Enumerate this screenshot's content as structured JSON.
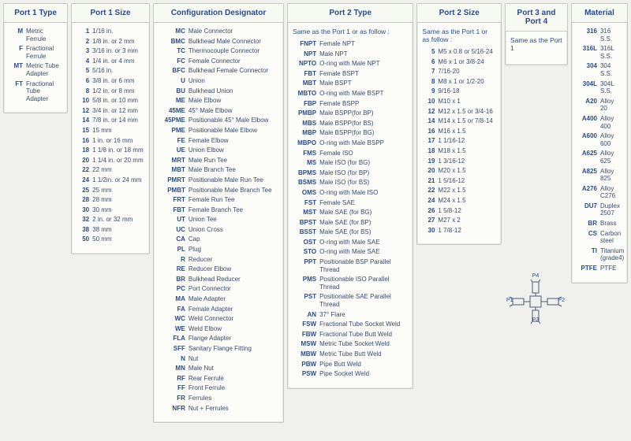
{
  "columns": {
    "port1type": {
      "title": "Port 1 Type",
      "rows": [
        {
          "code": "M",
          "label": "Metric Ferrule"
        },
        {
          "code": "F",
          "label": "Fractional Ferrule"
        },
        {
          "code": "MT",
          "label": "Metric Tube Adapter"
        },
        {
          "code": "FT",
          "label": "Fractional Tube Adapter"
        }
      ]
    },
    "port1size": {
      "title": "Port 1 Size",
      "rows": [
        {
          "code": "1",
          "label": "1/16 in."
        },
        {
          "code": "2",
          "label": "1/8 in. or 2 mm"
        },
        {
          "code": "3",
          "label": "3/16 in. or 3 mm"
        },
        {
          "code": "4",
          "label": "1/4 in. or 4 mm"
        },
        {
          "code": "5",
          "label": "5/16 in."
        },
        {
          "code": "6",
          "label": "3/8 in. or 6 mm"
        },
        {
          "code": "8",
          "label": "1/2 in. or 8 mm"
        },
        {
          "code": "10",
          "label": "5/8 in. or 10 mm"
        },
        {
          "code": "12",
          "label": "3/4 in. or 12 mm"
        },
        {
          "code": "14",
          "label": "7/8 in. or 14 mm"
        },
        {
          "code": "15",
          "label": "15 mm"
        },
        {
          "code": "16",
          "label": "1 in. or 16 mm"
        },
        {
          "code": "18",
          "label": "1 1/8 in. or 18 mm"
        },
        {
          "code": "20",
          "label": "1 1/4 in. or 20 mm"
        },
        {
          "code": "22",
          "label": "22 mm"
        },
        {
          "code": "24",
          "label": "1 1/2in. or 24 mm"
        },
        {
          "code": "25",
          "label": "25 mm"
        },
        {
          "code": "28",
          "label": "28 mm"
        },
        {
          "code": "30",
          "label": "30 mm"
        },
        {
          "code": "32",
          "label": "2 in. or 32 mm"
        },
        {
          "code": "38",
          "label": "38 mm"
        },
        {
          "code": "50",
          "label": "50 mm"
        }
      ]
    },
    "config": {
      "title": "Configuration Designator",
      "rows": [
        {
          "code": "MC",
          "label": "Male Connector"
        },
        {
          "code": "BMC",
          "label": "Bulkhead Male Connector"
        },
        {
          "code": "TC",
          "label": "Thermocouple Connector"
        },
        {
          "code": "FC",
          "label": "Female Connector"
        },
        {
          "code": "BFC",
          "label": "Bulkhead Female Connector"
        },
        {
          "code": "U",
          "label": "Union"
        },
        {
          "code": "BU",
          "label": "Bulkhead Union"
        },
        {
          "code": "ME",
          "label": "Male Elbow"
        },
        {
          "code": "45ME",
          "label": "45° Male Elbow"
        },
        {
          "code": "45PME",
          "label": "Positionable 45° Male Elbow"
        },
        {
          "code": "PME",
          "label": "Positionable Male Elbow"
        },
        {
          "code": "FE",
          "label": "Female Elbow"
        },
        {
          "code": "UE",
          "label": "Union Elbow"
        },
        {
          "code": "MRT",
          "label": "Male Run Tee"
        },
        {
          "code": "MBT",
          "label": "Male Branch Tee"
        },
        {
          "code": "PMRT",
          "label": "Positionable Male Run Tee"
        },
        {
          "code": "PMBT",
          "label": "Positionable Male Branch Tee"
        },
        {
          "code": "FRT",
          "label": "Female Run Tee"
        },
        {
          "code": "FBT",
          "label": "Female Branch Tee"
        },
        {
          "code": "UT",
          "label": "Union Tee"
        },
        {
          "code": "UC",
          "label": "Union Cross"
        },
        {
          "code": "CA",
          "label": "Cap"
        },
        {
          "code": "PL",
          "label": "Plug"
        },
        {
          "code": "R",
          "label": "Reducer"
        },
        {
          "code": "RE",
          "label": "Reducer Elbow"
        },
        {
          "code": "BR",
          "label": "Bulkhead Reducer"
        },
        {
          "code": "PC",
          "label": "Port Connector"
        },
        {
          "code": "MA",
          "label": "Male Adapter"
        },
        {
          "code": "FA",
          "label": "Female Adapter"
        },
        {
          "code": "WC",
          "label": "Weld Connector"
        },
        {
          "code": "WE",
          "label": "Weld Elbow"
        },
        {
          "code": "FLA",
          "label": "Flange Adapter"
        },
        {
          "code": "SFF",
          "label": "Sanitary Flange Fitting"
        },
        {
          "code": "N",
          "label": "Nut"
        },
        {
          "code": "MN",
          "label": "Male Nut"
        },
        {
          "code": "RF",
          "label": "Rear Ferrule"
        },
        {
          "code": "FF",
          "label": "Front Ferrule"
        },
        {
          "code": "FR",
          "label": "Ferrules"
        },
        {
          "code": "NFR",
          "label": "Nut + Ferrules"
        }
      ]
    },
    "port2type": {
      "title": "Port 2 Type",
      "note": "Same as the Port 1 or as follow :",
      "rows": [
        {
          "code": "FNPT",
          "label": "Female NPT"
        },
        {
          "code": "NPT",
          "label": "Male NPT"
        },
        {
          "code": "NPTO",
          "label": "O-ring with Male NPT"
        },
        {
          "code": "FBT",
          "label": "Female BSPT"
        },
        {
          "code": "MBT",
          "label": "Male BSPT"
        },
        {
          "code": "MBTO",
          "label": "O-ring with Male BSPT"
        },
        {
          "code": "FBP",
          "label": "Female BSPP"
        },
        {
          "code": "PMBP",
          "label": "Male BSPP(for BP)"
        },
        {
          "code": "MBS",
          "label": "Male BSPP(for BS)"
        },
        {
          "code": "MBP",
          "label": "Male BSPP(for BG)"
        },
        {
          "code": "MBPO",
          "label": "O-ring with Male BSPP"
        },
        {
          "code": "FMS",
          "label": "Female ISO"
        },
        {
          "code": "MS",
          "label": "Male ISO (for BG)"
        },
        {
          "code": "BPMS",
          "label": "Male ISO (for BP)"
        },
        {
          "code": "BSMS",
          "label": "Male ISO (for BS)"
        },
        {
          "code": "OMS",
          "label": "O-ring with Male ISO"
        },
        {
          "code": "FST",
          "label": "Female SAE"
        },
        {
          "code": "MST",
          "label": "Male SAE (for BG)"
        },
        {
          "code": "BPST",
          "label": "Male SAE (for BP)"
        },
        {
          "code": "BSST",
          "label": "Male SAE (for BS)"
        },
        {
          "code": "OST",
          "label": "O-ring with Male SAE"
        },
        {
          "code": "STO",
          "label": "O-ring with Male SAE"
        },
        {
          "code": "PPT",
          "label": "Positionable BSP Parallel Thread"
        },
        {
          "code": "PMS",
          "label": "Positionable ISO Parallel Thread"
        },
        {
          "code": "PST",
          "label": "Positionable SAE Parallel Thread"
        },
        {
          "code": "AN",
          "label": "37° Flare"
        },
        {
          "code": "FSW",
          "label": "Fractional Tube Socket Weld"
        },
        {
          "code": "FBW",
          "label": "Fractional Tube Butt Weld"
        },
        {
          "code": "MSW",
          "label": "Metric Tube Socket Weld"
        },
        {
          "code": "MBW",
          "label": "Metric Tube Butt Weld"
        },
        {
          "code": "PBW",
          "label": "Pipe Butt Weld"
        },
        {
          "code": "PSW",
          "label": "Pipe Socket Weld"
        }
      ]
    },
    "port2size": {
      "title": "Port 2 Size",
      "note": "Same as the Port 1 or as follow :",
      "rows": [
        {
          "code": "5",
          "label": "M5 x 0.8 or 5/16-24"
        },
        {
          "code": "6",
          "label": "M6 x 1 or 3/8-24"
        },
        {
          "code": "7",
          "label": "7/16-20"
        },
        {
          "code": "8",
          "label": "M8 x 1 or 1/2-20"
        },
        {
          "code": "9",
          "label": "9/16-18"
        },
        {
          "code": "10",
          "label": "M10 x 1"
        },
        {
          "code": "12",
          "label": "M12 x 1.5 or 3/4-16"
        },
        {
          "code": "14",
          "label": "M14 x 1.5 or 7/8-14"
        },
        {
          "code": "16",
          "label": "M16 x 1.5"
        },
        {
          "code": "17",
          "label": "1 1/16-12"
        },
        {
          "code": "18",
          "label": "M18 x 1.5"
        },
        {
          "code": "19",
          "label": "1 3/16-12"
        },
        {
          "code": "20",
          "label": "M20 x 1.5"
        },
        {
          "code": "21",
          "label": "1 5/16-12"
        },
        {
          "code": "22",
          "label": "M22 x 1.5"
        },
        {
          "code": "24",
          "label": "M24 x 1.5"
        },
        {
          "code": "26",
          "label": "1 5/8-12"
        },
        {
          "code": "27",
          "label": "M27 x 2"
        },
        {
          "code": "30",
          "label": "1 7/8-12"
        }
      ]
    },
    "port34": {
      "title": "Port 3 and Port 4",
      "note": "Same as the Port 1"
    },
    "material": {
      "title": "Material",
      "rows": [
        {
          "code": "316",
          "label": "316 S.S."
        },
        {
          "code": "316L",
          "label": "316L S.S."
        },
        {
          "code": "304",
          "label": "304 S.S."
        },
        {
          "code": "304L",
          "label": "304L S.S."
        },
        {
          "code": "A20",
          "label": "Alloy 20"
        },
        {
          "code": "A400",
          "label": "Alloy 400"
        },
        {
          "code": "A600",
          "label": "Alloy 600"
        },
        {
          "code": "A625",
          "label": "Alloy 625"
        },
        {
          "code": "A825",
          "label": "Alloy 825"
        },
        {
          "code": "A276",
          "label": "Alloy C276"
        },
        {
          "code": "DU7",
          "label": "Duplex 2507"
        },
        {
          "code": "BR",
          "label": "Brass"
        },
        {
          "code": "CS",
          "label": "Carbon steel"
        },
        {
          "code": "TI",
          "label": "Titanium (grade4)"
        },
        {
          "code": "PTFE",
          "label": "PTFE"
        }
      ]
    }
  },
  "diagram": {
    "p1": "P1",
    "p2": "P2",
    "p3": "P3",
    "p4": "P4"
  }
}
